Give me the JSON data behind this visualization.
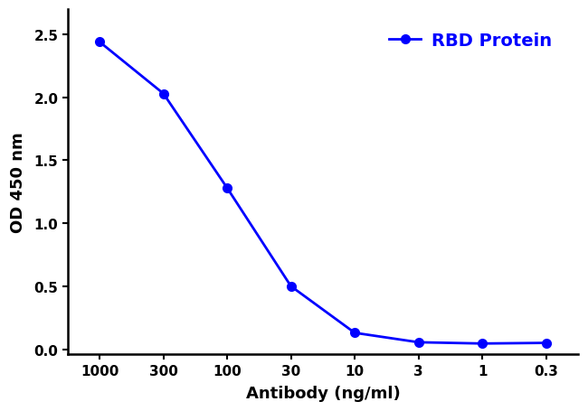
{
  "x_labels": [
    "1000",
    "300",
    "100",
    "30",
    "10",
    "3",
    "1",
    "0.3"
  ],
  "x_values": [
    0,
    1,
    2,
    3,
    4,
    5,
    6,
    7
  ],
  "y_values": [
    2.44,
    2.03,
    1.28,
    0.5,
    0.13,
    0.055,
    0.045,
    0.05
  ],
  "line_color": "#0000FF",
  "marker": "o",
  "marker_size": 7,
  "line_width": 2.0,
  "xlabel": "Antibody (ng/ml)",
  "ylabel": "OD 450 nm",
  "legend_label": "RBD Protein",
  "legend_color": "#0000FF",
  "ylim": [
    -0.04,
    2.7
  ],
  "yticks": [
    0.0,
    0.5,
    1.0,
    1.5,
    2.0,
    2.5
  ],
  "ytick_labels": [
    "0.0",
    "0.5",
    "1.0",
    "1.5",
    "2.0",
    "2.5"
  ],
  "background_color": "#ffffff",
  "axis_label_fontsize": 13,
  "tick_fontsize": 11,
  "legend_fontsize": 14
}
